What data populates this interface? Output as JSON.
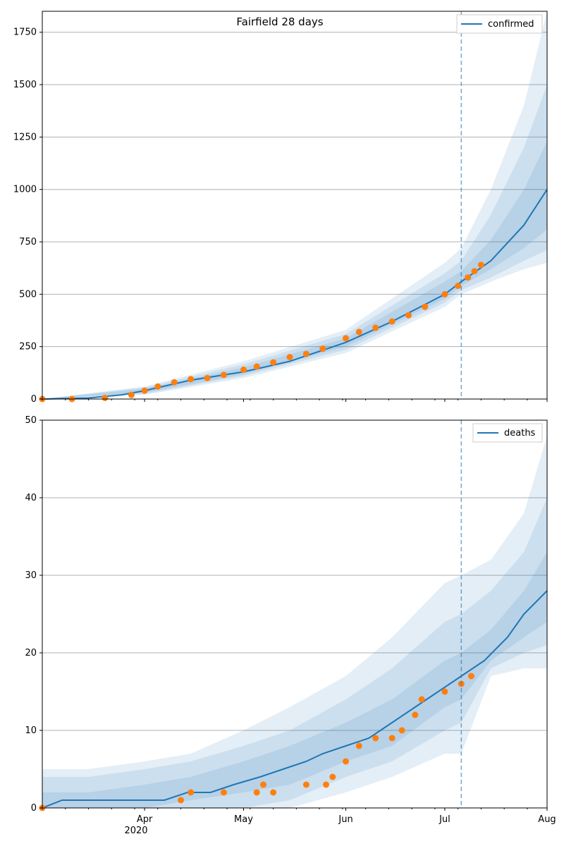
{
  "chart_data": [
    {
      "type": "line",
      "title": "Fairfield 28 days",
      "xlabel": "",
      "ylabel": "",
      "ylim": [
        0,
        1850
      ],
      "yticks": [
        0,
        250,
        500,
        750,
        1000,
        1250,
        1500,
        1750
      ],
      "ytick_labels": [
        "0",
        "250",
        "500",
        "750",
        "1000",
        "1250",
        "1500",
        "1750"
      ],
      "xticks": [],
      "grid": "horizontal",
      "legend": {
        "location": "top-right",
        "entries": [
          "confirmed"
        ]
      },
      "colors": {
        "line": "#1f77b4",
        "observed": "#ff7f0e",
        "band": "#1f77b4",
        "grid": "#b0b0b0",
        "forecast_line": "#1f77b4"
      },
      "forecast_start": "2020-07-06",
      "series": [
        {
          "name": "confirmed",
          "kind": "model_median",
          "x": [
            "2020-03-01",
            "2020-03-15",
            "2020-03-25",
            "2020-04-01",
            "2020-04-15",
            "2020-05-01",
            "2020-05-15",
            "2020-06-01",
            "2020-06-15",
            "2020-07-01",
            "2020-07-06",
            "2020-07-15",
            "2020-07-25",
            "2020-08-01"
          ],
          "values": [
            0,
            5,
            20,
            40,
            90,
            130,
            180,
            270,
            370,
            500,
            560,
            660,
            830,
            1000
          ]
        },
        {
          "kind": "observed",
          "x": [
            "2020-03-01",
            "2020-03-10",
            "2020-03-20",
            "2020-03-28",
            "2020-04-01",
            "2020-04-05",
            "2020-04-10",
            "2020-04-15",
            "2020-04-20",
            "2020-04-25",
            "2020-05-01",
            "2020-05-05",
            "2020-05-10",
            "2020-05-15",
            "2020-05-20",
            "2020-05-25",
            "2020-06-01",
            "2020-06-05",
            "2020-06-10",
            "2020-06-15",
            "2020-06-20",
            "2020-06-25",
            "2020-07-01",
            "2020-07-05",
            "2020-07-08",
            "2020-07-10",
            "2020-07-12"
          ],
          "values": [
            0,
            0,
            5,
            20,
            40,
            60,
            80,
            95,
            100,
            115,
            140,
            155,
            175,
            200,
            215,
            240,
            290,
            320,
            340,
            370,
            400,
            440,
            500,
            540,
            580,
            610,
            640
          ]
        }
      ],
      "bands": [
        {
          "x": [
            "2020-03-01",
            "2020-04-01",
            "2020-05-01",
            "2020-06-01",
            "2020-07-01",
            "2020-07-06",
            "2020-07-15",
            "2020-07-25",
            "2020-08-01"
          ],
          "lower": [
            0,
            20,
            100,
            220,
            440,
            500,
            560,
            620,
            650
          ],
          "upper": [
            0,
            60,
            180,
            330,
            650,
            720,
            1000,
            1400,
            1850
          ]
        },
        {
          "x": [
            "2020-03-01",
            "2020-04-01",
            "2020-05-01",
            "2020-06-01",
            "2020-07-01",
            "2020-07-06",
            "2020-07-15",
            "2020-07-25",
            "2020-08-01"
          ],
          "lower": [
            0,
            25,
            110,
            235,
            460,
            520,
            580,
            660,
            710
          ],
          "upper": [
            0,
            55,
            165,
            310,
            600,
            660,
            880,
            1200,
            1500
          ]
        },
        {
          "x": [
            "2020-03-01",
            "2020-04-01",
            "2020-05-01",
            "2020-06-01",
            "2020-07-01",
            "2020-07-06",
            "2020-07-15",
            "2020-07-25",
            "2020-08-01"
          ],
          "lower": [
            0,
            30,
            118,
            250,
            478,
            540,
            620,
            720,
            810
          ],
          "upper": [
            0,
            50,
            150,
            290,
            560,
            610,
            760,
            1000,
            1230
          ]
        }
      ]
    },
    {
      "type": "line",
      "title": "",
      "xlabel": "",
      "ylabel": "",
      "ylim": [
        0,
        50
      ],
      "yticks": [
        0,
        10,
        20,
        30,
        40,
        50
      ],
      "ytick_labels": [
        "0",
        "10",
        "20",
        "30",
        "40",
        "50"
      ],
      "xticks": [
        "2020-04-01",
        "2020-05-01",
        "2020-06-01",
        "2020-07-01",
        "2020-08-01"
      ],
      "xtick_labels": [
        "Apr",
        "May",
        "Jun",
        "Jul",
        "Aug"
      ],
      "xtick_sublabel": "2020",
      "grid": "horizontal",
      "legend": {
        "location": "top-right",
        "entries": [
          "deaths"
        ]
      },
      "colors": {
        "line": "#1f77b4",
        "observed": "#ff7f0e",
        "band": "#1f77b4",
        "grid": "#b0b0b0",
        "forecast_line": "#1f77b4"
      },
      "forecast_start": "2020-07-06",
      "series": [
        {
          "name": "deaths",
          "kind": "model_median",
          "x": [
            "2020-03-01",
            "2020-03-07",
            "2020-04-07",
            "2020-04-14",
            "2020-04-21",
            "2020-04-28",
            "2020-05-06",
            "2020-05-13",
            "2020-05-20",
            "2020-05-25",
            "2020-06-01",
            "2020-06-08",
            "2020-06-15",
            "2020-06-22",
            "2020-06-29",
            "2020-07-06",
            "2020-07-13",
            "2020-07-20",
            "2020-07-25",
            "2020-08-01"
          ],
          "values": [
            0,
            1,
            1,
            2,
            2,
            3,
            4,
            5,
            6,
            7,
            8,
            9,
            11,
            13,
            15,
            17,
            19,
            22,
            25,
            28
          ]
        },
        {
          "kind": "observed",
          "x": [
            "2020-03-01",
            "2020-04-12",
            "2020-04-15",
            "2020-04-25",
            "2020-05-05",
            "2020-05-07",
            "2020-05-10",
            "2020-05-20",
            "2020-05-26",
            "2020-05-28",
            "2020-06-01",
            "2020-06-05",
            "2020-06-10",
            "2020-06-15",
            "2020-06-18",
            "2020-06-22",
            "2020-06-24",
            "2020-07-01",
            "2020-07-06",
            "2020-07-09"
          ],
          "values": [
            0,
            1,
            2,
            2,
            2,
            3,
            2,
            3,
            3,
            4,
            6,
            8,
            9,
            9,
            10,
            12,
            14,
            15,
            16,
            17
          ]
        }
      ],
      "bands": [
        {
          "x": [
            "2020-03-01",
            "2020-03-15",
            "2020-04-01",
            "2020-04-15",
            "2020-05-01",
            "2020-05-15",
            "2020-06-01",
            "2020-06-15",
            "2020-07-01",
            "2020-07-06",
            "2020-07-15",
            "2020-07-25",
            "2020-08-01"
          ],
          "lower": [
            0,
            0,
            0,
            0,
            0,
            0,
            2,
            4,
            7,
            7,
            17,
            18,
            18
          ],
          "upper": [
            5,
            5,
            6,
            7,
            10,
            13,
            17,
            22,
            29,
            30,
            32,
            38,
            48
          ]
        },
        {
          "x": [
            "2020-03-01",
            "2020-03-15",
            "2020-04-01",
            "2020-04-15",
            "2020-05-01",
            "2020-05-15",
            "2020-06-01",
            "2020-06-15",
            "2020-07-01",
            "2020-07-06",
            "2020-07-15",
            "2020-07-25",
            "2020-08-01"
          ],
          "lower": [
            0,
            0,
            0,
            0,
            0,
            1,
            4,
            6,
            10,
            11,
            18,
            20,
            21
          ],
          "upper": [
            4,
            4,
            5,
            6,
            8,
            10,
            14,
            18,
            24,
            25,
            28,
            33,
            40
          ]
        },
        {
          "x": [
            "2020-03-01",
            "2020-03-15",
            "2020-04-01",
            "2020-04-15",
            "2020-05-01",
            "2020-05-15",
            "2020-06-01",
            "2020-06-15",
            "2020-07-01",
            "2020-07-06",
            "2020-07-15",
            "2020-07-25",
            "2020-08-01"
          ],
          "lower": [
            0,
            0,
            0,
            1,
            2,
            3,
            6,
            8,
            13,
            14,
            19,
            22,
            24
          ],
          "upper": [
            2,
            2,
            3,
            4,
            6,
            8,
            11,
            14,
            19,
            20,
            23,
            28,
            33
          ]
        }
      ]
    }
  ]
}
